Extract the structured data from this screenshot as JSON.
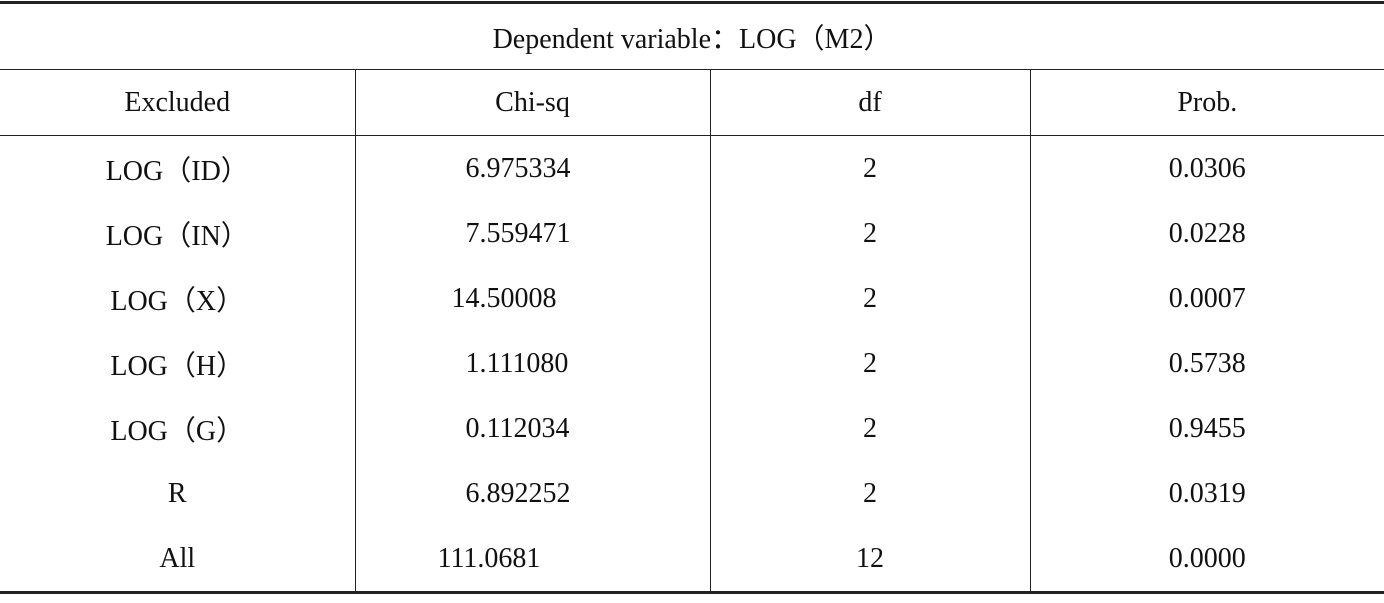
{
  "table": {
    "title": "Dependent variable：LOG（M2）",
    "header": [
      "Excluded",
      "Chi-sq",
      "df",
      "Prob."
    ],
    "rows": [
      [
        "LOG（ID）",
        "6.975334",
        "2",
        "0.0306"
      ],
      [
        "LOG（IN）",
        "7.559471",
        "2",
        "0.0228"
      ],
      [
        "LOG（X）",
        "14.50008",
        "2",
        "0.0007"
      ],
      [
        "LOG（H）",
        "1.111080",
        "2",
        "0.5738"
      ],
      [
        "LOG（G）",
        "0.112034",
        "2",
        "0.9455"
      ],
      [
        "R",
        "6.892252",
        "2",
        "0.0319"
      ],
      [
        "All",
        "111.0681",
        "12",
        "0.0000"
      ]
    ]
  }
}
